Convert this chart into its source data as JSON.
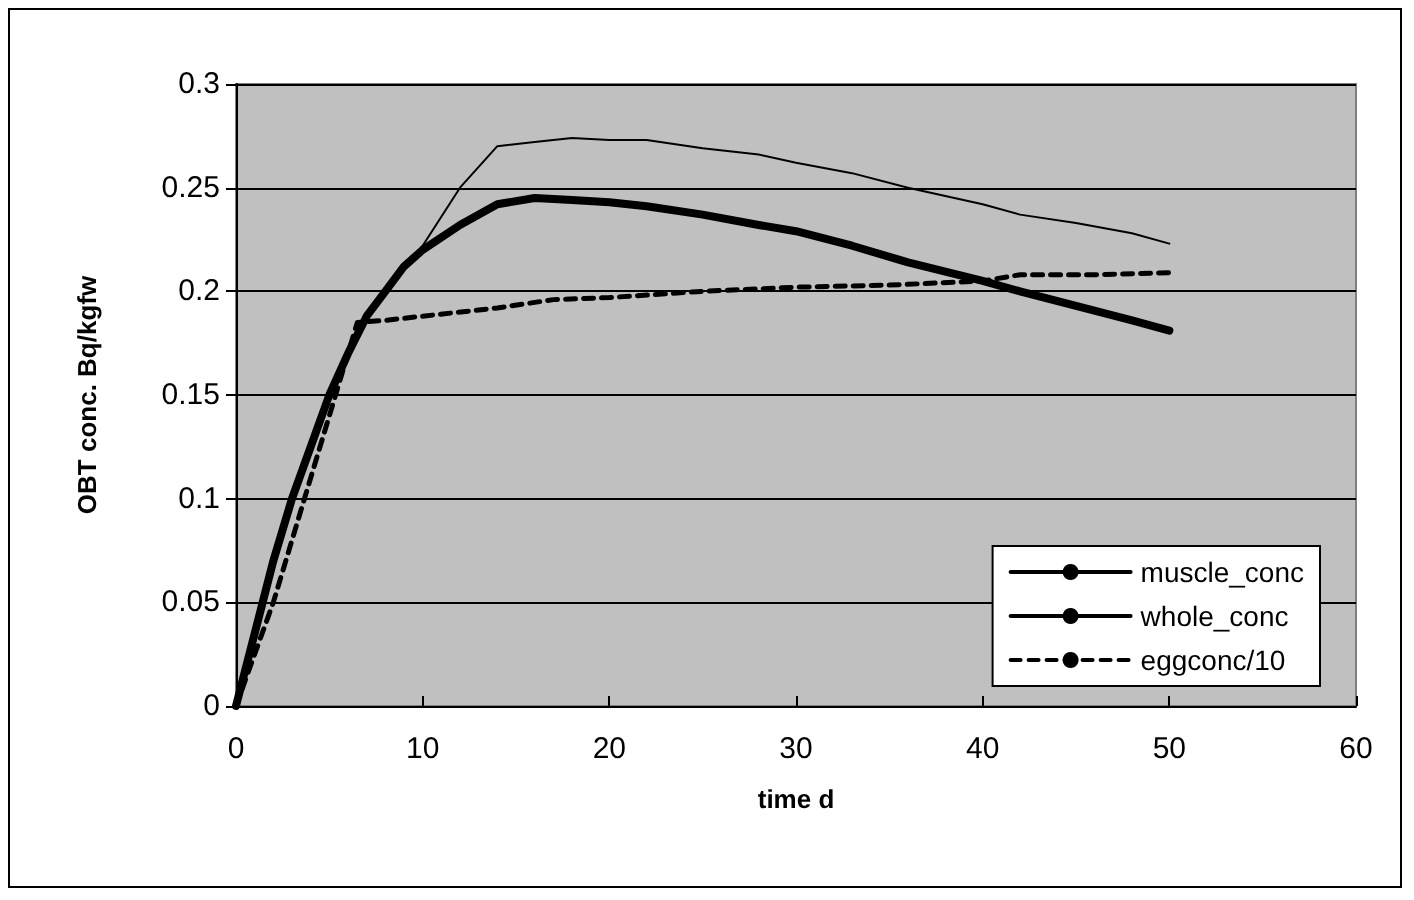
{
  "chart_data": {
    "type": "line",
    "xlabel": "time d",
    "ylabel": "OBT conc. Bq/kgfw",
    "xlim": [
      0,
      60
    ],
    "xticks": [
      0,
      10,
      20,
      30,
      40,
      50,
      60
    ],
    "ylim": [
      0,
      0.3
    ],
    "yticks": [
      0,
      0.05,
      0.1,
      0.15,
      0.2,
      0.25,
      0.3
    ],
    "grid": "y",
    "legend": "bottom right",
    "marker": "none",
    "series": [
      {
        "name": "muscle_conc",
        "color": "#000000",
        "line_style": "solid",
        "x": [
          0,
          1,
          2,
          3,
          4,
          5,
          6,
          7,
          8,
          9,
          10,
          12,
          14,
          16,
          18,
          20,
          22,
          25,
          28,
          30,
          33,
          36,
          40,
          42,
          45,
          48,
          50
        ],
        "values": [
          0,
          0.035,
          0.07,
          0.1,
          0.125,
          0.15,
          0.17,
          0.188,
          0.2,
          0.212,
          0.22,
          0.232,
          0.242,
          0.245,
          0.244,
          0.243,
          0.241,
          0.237,
          0.232,
          0.229,
          0.222,
          0.214,
          0.205,
          0.2,
          0.193,
          0.186,
          0.181
        ]
      },
      {
        "name": "whole_conc",
        "color": "#000000",
        "line_style": "solid",
        "x": [
          0,
          1,
          2,
          3,
          4,
          5,
          6,
          7,
          8,
          9,
          10,
          12,
          14,
          16,
          18,
          20,
          22,
          25,
          28,
          30,
          33,
          36,
          38,
          40,
          42,
          45,
          48,
          50
        ],
        "values": [
          0,
          0.035,
          0.07,
          0.1,
          0.125,
          0.15,
          0.17,
          0.188,
          0.2,
          0.212,
          0.222,
          0.25,
          0.27,
          0.272,
          0.274,
          0.273,
          0.273,
          0.269,
          0.266,
          0.262,
          0.257,
          0.25,
          0.246,
          0.242,
          0.237,
          0.233,
          0.228,
          0.223
        ]
      },
      {
        "name": "eggconc/10",
        "color": "#000000",
        "line_style": "dashed",
        "x": [
          0,
          1,
          2,
          3,
          4,
          5,
          6,
          6.5,
          8,
          10,
          14,
          17,
          20,
          25,
          30,
          35,
          40,
          42,
          46,
          50
        ],
        "values": [
          0,
          0.025,
          0.05,
          0.08,
          0.11,
          0.14,
          0.17,
          0.185,
          0.186,
          0.188,
          0.192,
          0.196,
          0.197,
          0.2,
          0.202,
          0.203,
          0.205,
          0.208,
          0.208,
          0.209
        ]
      }
    ]
  }
}
